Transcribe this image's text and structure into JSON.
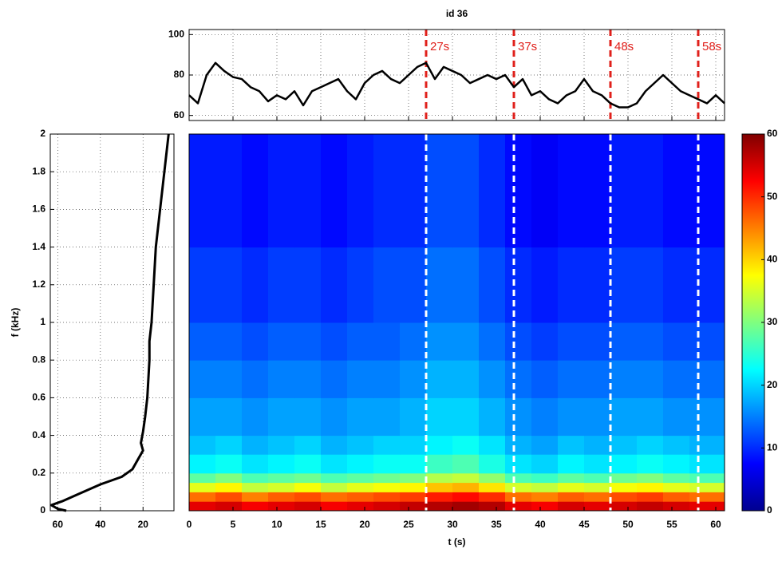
{
  "chart_data": [
    {
      "type": "line",
      "title": "id 36",
      "x": [
        0,
        1,
        2,
        3,
        4,
        5,
        6,
        7,
        8,
        9,
        10,
        11,
        12,
        13,
        14,
        15,
        16,
        17,
        18,
        19,
        20,
        21,
        22,
        23,
        24,
        25,
        26,
        27,
        28,
        29,
        30,
        31,
        32,
        33,
        34,
        35,
        36,
        37,
        38,
        39,
        40,
        41,
        42,
        43,
        44,
        45,
        46,
        47,
        48,
        49,
        50,
        51,
        52,
        53,
        54,
        55,
        56,
        57,
        58,
        59,
        60,
        61
      ],
      "values": [
        70,
        66,
        80,
        86,
        82,
        79,
        78,
        74,
        72,
        67,
        70,
        68,
        72,
        65,
        72,
        74,
        76,
        78,
        72,
        68,
        76,
        80,
        82,
        78,
        76,
        80,
        84,
        86,
        78,
        84,
        82,
        80,
        76,
        78,
        80,
        78,
        80,
        74,
        78,
        70,
        72,
        68,
        66,
        70,
        72,
        78,
        72,
        70,
        66,
        64,
        64,
        66,
        72,
        76,
        80,
        76,
        72,
        70,
        68,
        66,
        70,
        66
      ],
      "color": "#000000",
      "xlim": [
        0,
        61
      ],
      "ylim": [
        57.5,
        102.5
      ],
      "xticks": [
        0,
        5,
        10,
        15,
        20,
        25,
        30,
        35,
        40,
        45,
        50,
        55,
        60
      ],
      "show_xtick_labels": false,
      "yticks": [
        60,
        80,
        100
      ],
      "grid": true,
      "vlines": [
        {
          "value": 27,
          "label": "27s"
        },
        {
          "value": 37,
          "label": "37s"
        },
        {
          "value": 48,
          "label": "48s"
        },
        {
          "value": 58,
          "label": "58s"
        }
      ],
      "vline_color": "#e0201b"
    },
    {
      "type": "line",
      "ylabel": "f (kHz)",
      "x": [
        8,
        10,
        12,
        14,
        15,
        16,
        17,
        17,
        18,
        19,
        20,
        21,
        20,
        22,
        25,
        30,
        40,
        50,
        58,
        63,
        60,
        56
      ],
      "values": [
        2,
        1.8,
        1.6,
        1.4,
        1.2,
        1.0,
        0.9,
        0.8,
        0.6,
        0.5,
        0.42,
        0.36,
        0.32,
        0.28,
        0.22,
        0.18,
        0.14,
        0.09,
        0.05,
        0.03,
        0.01,
        0
      ],
      "color": "#000000",
      "xlim": [
        63.5,
        5.5
      ],
      "ylim": [
        0,
        2
      ],
      "xticks": [
        60,
        40,
        20
      ],
      "show_xtick_labels": true,
      "yticks": [
        0,
        0.2,
        0.4,
        0.6,
        0.8,
        1,
        1.2,
        1.4,
        1.6,
        1.8,
        2
      ],
      "grid": true
    },
    {
      "type": "heatmap",
      "xlabel": "t (s)",
      "xlim": [
        0,
        61
      ],
      "ylim": [
        0,
        2
      ],
      "xticks": [
        0,
        5,
        10,
        15,
        20,
        25,
        30,
        35,
        40,
        45,
        50,
        55,
        60
      ],
      "show_xtick_labels": true,
      "grid": false,
      "xbins": [
        0,
        3,
        6,
        9,
        12,
        15,
        18,
        21,
        24,
        27,
        30,
        33,
        36,
        39,
        42,
        45,
        48,
        51,
        54,
        57,
        61
      ],
      "ybins": [
        0,
        0.05,
        0.1,
        0.15,
        0.2,
        0.3,
        0.4,
        0.6,
        0.8,
        1.0,
        1.4,
        2.0
      ],
      "z": [
        [
          54,
          55,
          53,
          54,
          55,
          53,
          54,
          55,
          56,
          57,
          58,
          57,
          54,
          53,
          55,
          54,
          55,
          56,
          55,
          54
        ],
        [
          46,
          48,
          45,
          47,
          48,
          46,
          47,
          48,
          49,
          51,
          52,
          50,
          46,
          45,
          47,
          46,
          48,
          49,
          47,
          46
        ],
        [
          36,
          38,
          34,
          35,
          37,
          34,
          36,
          37,
          38,
          41,
          42,
          39,
          35,
          34,
          36,
          35,
          37,
          38,
          36,
          35
        ],
        [
          28,
          30,
          27,
          28,
          29,
          27,
          28,
          29,
          30,
          33,
          34,
          31,
          27,
          26,
          28,
          27,
          29,
          30,
          28,
          27
        ],
        [
          22,
          23,
          21,
          22,
          23,
          21,
          22,
          23,
          23,
          26,
          27,
          24,
          21,
          20,
          22,
          21,
          22,
          23,
          22,
          21
        ],
        [
          19,
          20,
          18,
          19,
          20,
          18,
          19,
          20,
          20,
          22,
          23,
          21,
          18,
          17,
          19,
          18,
          19,
          20,
          19,
          18
        ],
        [
          17,
          17,
          16,
          17,
          17,
          16,
          17,
          17,
          18,
          20,
          20,
          18,
          16,
          15,
          16,
          16,
          17,
          17,
          16,
          16
        ],
        [
          15,
          15,
          14,
          15,
          15,
          14,
          15,
          15,
          16,
          18,
          18,
          16,
          14,
          13,
          14,
          14,
          15,
          15,
          14,
          14
        ],
        [
          13,
          13,
          12,
          13,
          13,
          12,
          13,
          13,
          14,
          16,
          16,
          14,
          12,
          11,
          12,
          12,
          13,
          13,
          12,
          12
        ],
        [
          11,
          11,
          10,
          11,
          11,
          10,
          11,
          12,
          12,
          14,
          14,
          12,
          10,
          9,
          10,
          10,
          11,
          11,
          10,
          10
        ],
        [
          9,
          9,
          8,
          9,
          9,
          8,
          9,
          10,
          10,
          12,
          12,
          10,
          8,
          7,
          8,
          8,
          9,
          9,
          8,
          8
        ]
      ],
      "colormap": "jet",
      "clim": [
        0,
        60
      ],
      "cticks": [
        0,
        10,
        20,
        30,
        40,
        50,
        60
      ],
      "vlines": [
        27,
        37,
        48,
        58
      ],
      "vline_color": "#ffffff"
    }
  ]
}
